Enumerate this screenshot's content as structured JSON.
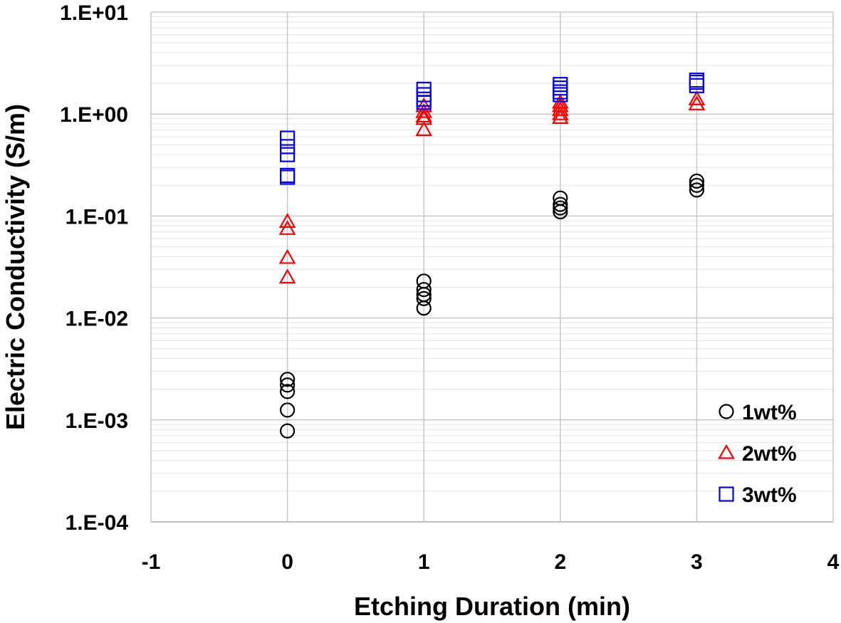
{
  "chart_data": {
    "type": "scatter",
    "title": "",
    "xlabel": "Etching Duration (min)",
    "ylabel": "Electric Conductivity (S/m)",
    "xlim": [
      -1,
      4
    ],
    "ylim": [
      0.0001,
      10
    ],
    "yscale": "log",
    "grid": true,
    "legend_position": "bottom-right",
    "x_ticks": [
      "-1",
      "0",
      "1",
      "2",
      "3",
      "4"
    ],
    "x_tick_values": [
      -1,
      0,
      1,
      2,
      3,
      4
    ],
    "y_ticks": [
      "1.E-04",
      "1.E-03",
      "1.E-02",
      "1.E-01",
      "1.E+00",
      "1.E+01"
    ],
    "y_tick_values": [
      0.0001,
      0.001,
      0.01,
      0.1,
      1,
      10
    ],
    "series": [
      {
        "name": "1wt%",
        "marker": "circle",
        "color": "#000000",
        "points": [
          [
            0,
            0.0025
          ],
          [
            0,
            0.0022
          ],
          [
            0,
            0.0019
          ],
          [
            0,
            0.00125
          ],
          [
            0,
            0.00078
          ],
          [
            1,
            0.023
          ],
          [
            1,
            0.019
          ],
          [
            1,
            0.017
          ],
          [
            1,
            0.0155
          ],
          [
            1,
            0.0125
          ],
          [
            2,
            0.15
          ],
          [
            2,
            0.13
          ],
          [
            2,
            0.12
          ],
          [
            2,
            0.11
          ],
          [
            3,
            0.22
          ],
          [
            3,
            0.2
          ],
          [
            3,
            0.18
          ]
        ]
      },
      {
        "name": "2wt%",
        "marker": "triangle",
        "color": "#ff0000",
        "points": [
          [
            0,
            0.088
          ],
          [
            0,
            0.075
          ],
          [
            0,
            0.039
          ],
          [
            0,
            0.025
          ],
          [
            1,
            1.2
          ],
          [
            1,
            1.05
          ],
          [
            1,
            0.95
          ],
          [
            1,
            0.9
          ],
          [
            1,
            0.7
          ],
          [
            2,
            1.3
          ],
          [
            2,
            1.2
          ],
          [
            2,
            1.1
          ],
          [
            2,
            1.0
          ],
          [
            2,
            0.92
          ],
          [
            3,
            1.4
          ],
          [
            3,
            1.25
          ]
        ]
      },
      {
        "name": "3wt%",
        "marker": "square",
        "color": "#0000ff",
        "points": [
          [
            0,
            0.58
          ],
          [
            0,
            0.48
          ],
          [
            0,
            0.4
          ],
          [
            0,
            0.25
          ],
          [
            0,
            0.24
          ],
          [
            1,
            1.75
          ],
          [
            1,
            1.55
          ],
          [
            1,
            1.4
          ],
          [
            1,
            1.3
          ],
          [
            2,
            1.95
          ],
          [
            2,
            1.8
          ],
          [
            2,
            1.65
          ],
          [
            2,
            1.55
          ],
          [
            3,
            2.15
          ],
          [
            3,
            2.05
          ],
          [
            3,
            1.9
          ]
        ]
      }
    ]
  }
}
